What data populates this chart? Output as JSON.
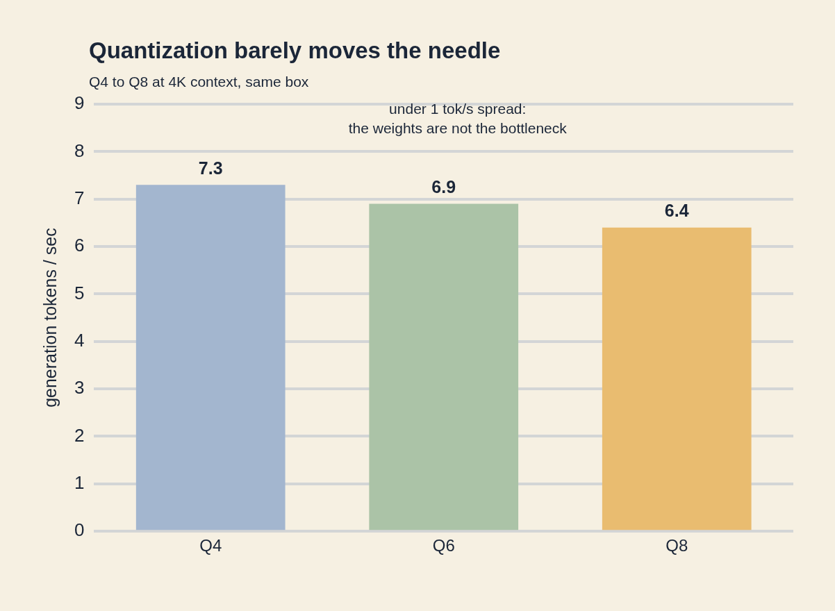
{
  "chart_data": {
    "type": "bar",
    "title": "Quantization barely moves the needle",
    "subtitle": "Q4 to Q8 at 4K context, same box",
    "ylabel": "generation tokens / sec",
    "categories": [
      "Q4",
      "Q6",
      "Q8"
    ],
    "values": [
      7.3,
      6.9,
      6.4
    ],
    "colors": [
      "#a3b6cf",
      "#abc3a7",
      "#e9bc70"
    ],
    "ylim": [
      0,
      9
    ],
    "yticks": [
      0,
      1,
      2,
      3,
      4,
      5,
      6,
      7,
      8,
      9
    ],
    "grid": "y",
    "data_labels": true,
    "legend": false,
    "annotations": [
      "under 1 tok/s spread:\nthe weights are not the bottleneck"
    ]
  }
}
